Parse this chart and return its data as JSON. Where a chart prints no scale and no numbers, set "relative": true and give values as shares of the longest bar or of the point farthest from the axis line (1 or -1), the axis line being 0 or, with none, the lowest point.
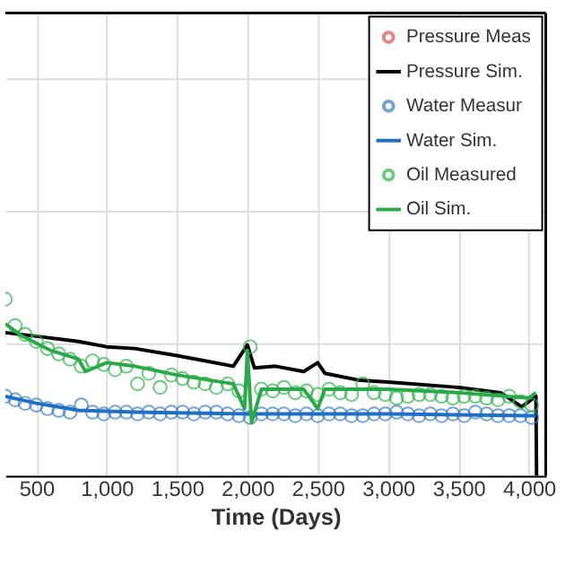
{
  "chart_data": {
    "type": "line",
    "xlabel": "Time (Days)",
    "relative": true,
    "grid": true,
    "legend": "top right",
    "tick_labels": "x",
    "xlim": [
      280,
      4120
    ],
    "xticks": [
      500,
      {
        "value": 1000,
        "label": "1,000"
      },
      {
        "value": 1500,
        "label": "1,500"
      },
      {
        "value": 2000,
        "label": "2,000"
      },
      {
        "value": 2500,
        "label": "2,500"
      },
      {
        "value": 3000,
        "label": "3,000"
      },
      {
        "value": 3500,
        "label": "3,500"
      },
      {
        "value": 4000,
        "label": "4,000"
      }
    ],
    "series": [
      {
        "name": "Pressure Meas",
        "type": "scatter",
        "marker": "circle",
        "color": "#d9534f"
      },
      {
        "name": "Pressure Sim.",
        "color": "#000000",
        "x": [
          280,
          500,
          800,
          1000,
          1200,
          1500,
          1900,
          2000,
          2050,
          2200,
          2400,
          2500,
          2550,
          2800,
          3000,
          3500,
          3800,
          3950,
          4050,
          4055
        ],
        "values": [
          0.81,
          0.79,
          0.76,
          0.73,
          0.72,
          0.68,
          0.62,
          0.74,
          0.61,
          0.62,
          0.59,
          0.64,
          0.58,
          0.54,
          0.53,
          0.5,
          0.47,
          0.39,
          0.45,
          0
        ]
      },
      {
        "name": "Water Measur",
        "type": "scatter",
        "marker": "circle",
        "color": "#3a7cc4",
        "x": [
          280,
          350,
          420,
          500,
          580,
          660,
          740,
          820,
          900,
          980,
          1060,
          1140,
          1220,
          1300,
          1380,
          1460,
          1540,
          1620,
          1700,
          1780,
          1860,
          1940,
          2020,
          2100,
          2180,
          2260,
          2340,
          2420,
          2500,
          2580,
          2660,
          2740,
          2820,
          2900,
          2980,
          3060,
          3140,
          3220,
          3300,
          3380,
          3460,
          3540,
          3620,
          3700,
          3780,
          3860,
          3940,
          4020
        ],
        "values": [
          0.45,
          0.43,
          0.41,
          0.4,
          0.38,
          0.37,
          0.36,
          0.4,
          0.36,
          0.35,
          0.36,
          0.36,
          0.35,
          0.36,
          0.35,
          0.36,
          0.36,
          0.35,
          0.36,
          0.36,
          0.35,
          0.34,
          0.33,
          0.35,
          0.35,
          0.35,
          0.34,
          0.35,
          0.34,
          0.35,
          0.35,
          0.34,
          0.34,
          0.35,
          0.35,
          0.36,
          0.35,
          0.34,
          0.35,
          0.34,
          0.35,
          0.34,
          0.36,
          0.35,
          0.34,
          0.34,
          0.34,
          0.33
        ]
      },
      {
        "name": "Water Sim.",
        "color": "#1f6fc5",
        "x": [
          280,
          500,
          800,
          1200,
          2000,
          3000,
          4000,
          4050
        ],
        "values": [
          0.45,
          0.41,
          0.37,
          0.36,
          0.35,
          0.35,
          0.34,
          0.34
        ]
      },
      {
        "name": "Oil Measured",
        "type": "scatter",
        "marker": "circle",
        "color": "#2db34a",
        "x": [
          280,
          350,
          420,
          500,
          580,
          660,
          740,
          820,
          900,
          980,
          1060,
          1140,
          1220,
          1300,
          1380,
          1460,
          1540,
          1620,
          1700,
          1780,
          1860,
          1940,
          2020,
          2100,
          2180,
          2260,
          2340,
          2420,
          2500,
          2580,
          2660,
          2740,
          2820,
          2900,
          2980,
          3060,
          3140,
          3220,
          3300,
          3380,
          3460,
          3540,
          3620,
          3700,
          3780,
          3860,
          3940,
          4020
        ],
        "values": [
          1,
          0.85,
          0.8,
          0.76,
          0.72,
          0.69,
          0.66,
          0.62,
          0.65,
          0.63,
          0.6,
          0.62,
          0.52,
          0.58,
          0.5,
          0.57,
          0.55,
          0.53,
          0.52,
          0.5,
          0.52,
          0.48,
          0.73,
          0.49,
          0.48,
          0.5,
          0.47,
          0.48,
          0.46,
          0.49,
          0.47,
          0.46,
          0.52,
          0.47,
          0.46,
          0.44,
          0.45,
          0.46,
          0.46,
          0.45,
          0.44,
          0.45,
          0.45,
          0.44,
          0.43,
          0.45,
          0.42,
          0.4
        ]
      },
      {
        "name": "Oil Sim.",
        "color": "#2aa84a",
        "x": [
          280,
          400,
          600,
          800,
          850,
          1000,
          1200,
          1500,
          1900,
          1980,
          2000,
          2030,
          2100,
          2400,
          2500,
          2550,
          3000,
          3500,
          4000,
          4050
        ],
        "values": [
          0.86,
          0.79,
          0.71,
          0.66,
          0.59,
          0.64,
          0.62,
          0.57,
          0.52,
          0.38,
          0.71,
          0.3,
          0.49,
          0.49,
          0.38,
          0.49,
          0.49,
          0.47,
          0.44,
          0.47
        ]
      }
    ]
  }
}
